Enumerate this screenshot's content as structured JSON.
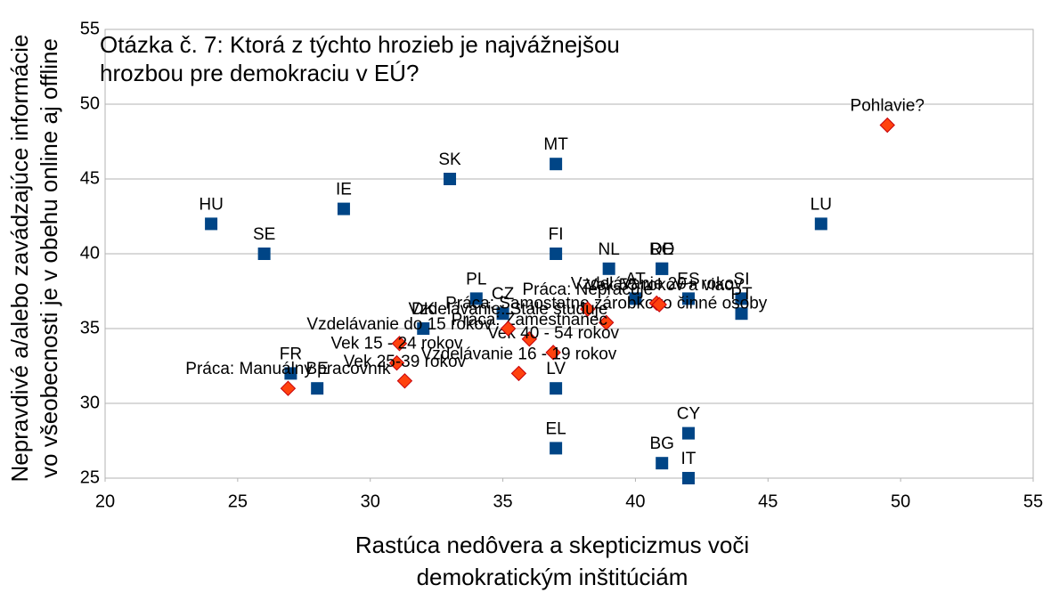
{
  "chart_data": {
    "type": "scatter",
    "title": [
      "Otázka č. 7: Ktorá z týchto hrozieb je najvážnejšou",
      " hrozbou pre demokraciu v EÚ?"
    ],
    "x_label": [
      "Rastúca nedôvera a skepticizmus voči",
      "demokratickým inštitúciám"
    ],
    "y_label": [
      "Nepravdivé a/alebo zavádzajúce informácie",
      "vo všeobecnosti je v obehu online aj offline"
    ],
    "xlim": [
      20,
      55
    ],
    "xticks": [
      20,
      25,
      30,
      35,
      40,
      45,
      50,
      55
    ],
    "ylim": [
      25,
      55
    ],
    "yticks": [
      25,
      30,
      35,
      40,
      45,
      50,
      55
    ],
    "grid": true,
    "series": [
      {
        "color": "#004586",
        "marker": "square",
        "labels": [
          "HU",
          "SE",
          "IE",
          "SK",
          "MT",
          "FI",
          "NL",
          "DE",
          "RO",
          "AT",
          "ES",
          "SI",
          "PT",
          "LU",
          "PL",
          "CZ",
          "DK",
          "FR",
          "BE",
          "LV",
          "EL",
          "CY",
          "BG",
          "IT"
        ],
        "x": [
          24,
          26,
          29,
          33,
          37,
          37,
          39,
          41,
          41,
          40,
          42,
          44,
          44,
          47,
          34,
          35,
          32,
          27,
          28,
          37,
          37,
          42,
          41,
          42
        ],
        "y": [
          42,
          40,
          43,
          45,
          46,
          40,
          39,
          39,
          39,
          37,
          37,
          37,
          36,
          42,
          37,
          36,
          35,
          32,
          31,
          31,
          27,
          28,
          26,
          25
        ]
      },
      {
        "color": "#ff420e",
        "marker": "diamond",
        "labels": [
          "Pohlavie?",
          "Práca: Manuálny pracovník",
          "Práca: Samostatne zárobkovo činné osoby",
          "Vzdelávanie do 15 rokov",
          "Vek 15 - 24 rokov",
          "Vek 25-39 rokov",
          "Vzdelávanie 20+ rokov",
          "Vek 55 rokov a viac",
          "Práca: Nepracuje",
          "Práca: Zamestnanec",
          "Vek 40 - 54 rokov",
          "Vzdelávanie 16 - 19 rokov",
          "Vzdelávanie: Stále študuje"
        ],
        "x": [
          49.5,
          26.9,
          38.9,
          31.1,
          31,
          31.3,
          40.8,
          40.9,
          38.2,
          36,
          36.9,
          35.6,
          35.2
        ],
        "y": [
          48.6,
          31,
          35.4,
          34,
          32.7,
          31.5,
          36.7,
          36.6,
          36.3,
          34.3,
          33.4,
          32,
          35
        ]
      }
    ]
  }
}
